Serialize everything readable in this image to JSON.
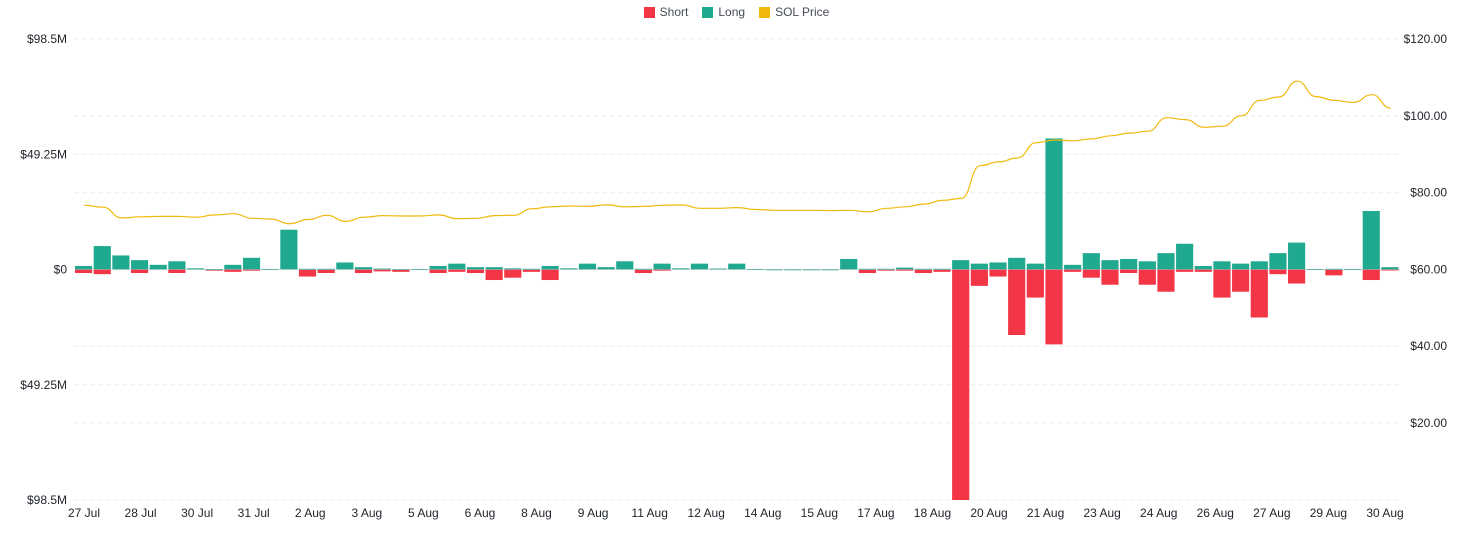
{
  "legend": {
    "short": {
      "label": "Short",
      "color": "#f23645"
    },
    "long": {
      "label": "Long",
      "color": "#1fa98f"
    },
    "price": {
      "label": "SOL Price",
      "color": "#f0b90b"
    }
  },
  "chart_data": {
    "type": "bar",
    "title": "",
    "left_axis": {
      "ticks": [
        "$98.5M",
        "$49.25M",
        "$0",
        "$49.25M",
        "$98.5M"
      ],
      "ylim": [
        -98.5,
        98.5
      ]
    },
    "right_axis": {
      "ticks": [
        "$120.00",
        "$100.00",
        "$80.00",
        "$60.00",
        "$40.00",
        "$20.00"
      ],
      "ylim": [
        0,
        120
      ]
    },
    "x_ticks": [
      "27 Jul",
      "28 Jul",
      "30 Jul",
      "31 Jul",
      "2 Aug",
      "3 Aug",
      "5 Aug",
      "6 Aug",
      "8 Aug",
      "9 Aug",
      "11 Aug",
      "12 Aug",
      "14 Aug",
      "15 Aug",
      "17 Aug",
      "18 Aug",
      "20 Aug",
      "21 Aug",
      "23 Aug",
      "24 Aug",
      "26 Aug",
      "27 Aug",
      "29 Aug",
      "30 Aug"
    ],
    "long": [
      1.5,
      10,
      6,
      4,
      2,
      3.5,
      0.5,
      0.2,
      2,
      5,
      0.2,
      17,
      0.3,
      0.3,
      3,
      1,
      0.4,
      0.2,
      0.2,
      1.5,
      2.5,
      1,
      1,
      0.5,
      0.3,
      1.5,
      0.5,
      2.5,
      1,
      3.5,
      0.3,
      2.5,
      0.5,
      2.5,
      0.4,
      2.5,
      0.2,
      0.1,
      0.1,
      0.1,
      0.1,
      4.5,
      0.3,
      0.3,
      0.8,
      0.3,
      0.3,
      4,
      2.5,
      3,
      5,
      2.5,
      56,
      2,
      7,
      4,
      4.5,
      3.5,
      7,
      11,
      1.5,
      3.5,
      2.5,
      3.5,
      7,
      11.5,
      0.2,
      0.3,
      0.2,
      25,
      1
    ],
    "short": [
      -1.5,
      -2,
      0,
      -1.5,
      0,
      -1.5,
      0,
      -0.5,
      -1,
      -0.5,
      0,
      0,
      -3,
      -1.5,
      0,
      -1.5,
      -0.8,
      -1,
      0,
      -1.5,
      -1,
      -1.5,
      -4.5,
      -3.5,
      -1,
      -4.5,
      0,
      0,
      0,
      0,
      -1.5,
      -0.5,
      0,
      0,
      0,
      0,
      0,
      0,
      0,
      0,
      0,
      0,
      -1.5,
      -0.5,
      -0.5,
      -1.5,
      -1,
      -98.5,
      -7,
      -3,
      -28,
      -12,
      -32,
      -1,
      -3.5,
      -6.5,
      -1.5,
      -6.5,
      -9.5,
      -1,
      -1,
      -12,
      -9.5,
      -20.5,
      -2,
      -6,
      0,
      -2.5,
      0,
      -4.5,
      -0.3
    ],
    "price": [
      76.7,
      76.2,
      73.4,
      73.7,
      73.8,
      73.8,
      73.6,
      74.2,
      74.5,
      73.3,
      73.1,
      71.9,
      73,
      74.1,
      72.5,
      73.6,
      74,
      73.9,
      73.9,
      74.2,
      73.2,
      73.3,
      74,
      74.1,
      75.8,
      76.3,
      76.5,
      76.4,
      76.8,
      76.3,
      76.4,
      76.7,
      76.8,
      75.9,
      75.9,
      76.1,
      75.6,
      75.4,
      75.4,
      75.4,
      75.3,
      75.4,
      75,
      75.9,
      76.3,
      77,
      78,
      78.5,
      87,
      88,
      89,
      93,
      93.7,
      93.5,
      94,
      94.8,
      95.5,
      96,
      99.5,
      99,
      97,
      97.3,
      100,
      104,
      104.9,
      109,
      105,
      104,
      103.5,
      105.5,
      102
    ]
  }
}
